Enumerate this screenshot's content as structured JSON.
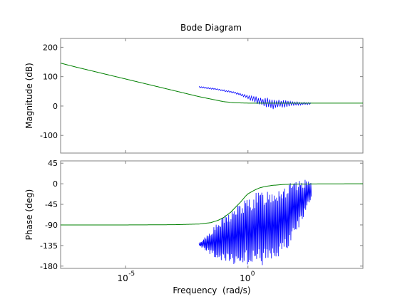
{
  "figure": {
    "title": "Bode Diagram",
    "xlabel": "Frequency  (rad/s)",
    "colors": {
      "background": "#ffffff",
      "axes": "#262626",
      "frame": "#808080",
      "green": "#008000",
      "blue": "#0000ff"
    }
  },
  "chart_data": [
    {
      "type": "line",
      "title": "Bode Diagram",
      "ylabel": "Magnitude (dB)",
      "xscale": "log",
      "xlim": [
        2.2e-08,
        50000.0
      ],
      "ylim": [
        -160,
        230
      ],
      "yticks": [
        200,
        100,
        0,
        -100
      ],
      "grid": false,
      "series": [
        {
          "color": "#008000",
          "x": [
            2.2e-08,
            1e-07,
            1e-06,
            1e-05,
            0.0001,
            0.001,
            0.01,
            0.1,
            0.3,
            1.0,
            10,
            100,
            1000,
            10000,
            50000
          ],
          "y": [
            146,
            132,
            112,
            92,
            72,
            52,
            32,
            15,
            11,
            10,
            10,
            10,
            10,
            10,
            10
          ]
        },
        {
          "color": "#0000ff",
          "x_range": [
            0.01,
            400
          ],
          "envelope_upper_x": [
            0.01,
            0.05,
            0.3,
            1,
            3,
            10,
            30,
            100,
            400
          ],
          "envelope_upper_y": [
            68,
            60,
            48,
            38,
            32,
            26,
            20,
            15,
            12
          ],
          "envelope_lower_x": [
            0.01,
            0.05,
            0.3,
            1,
            3,
            10,
            30,
            100,
            400
          ],
          "envelope_lower_y": [
            62,
            55,
            42,
            25,
            0,
            -12,
            -5,
            2,
            6
          ]
        }
      ]
    },
    {
      "type": "line",
      "ylabel": "Phase (deg)",
      "xscale": "log",
      "xlim": [
        2.2e-08,
        50000.0
      ],
      "ylim": [
        -185,
        50
      ],
      "yticks": [
        45,
        0,
        -45,
        -90,
        -135,
        -180
      ],
      "xticks": [
        1e-05,
        1
      ],
      "xtick_labels": [
        {
          "base": "10",
          "exp": "-5"
        },
        {
          "base": "10",
          "exp": "0"
        }
      ],
      "grid": false,
      "series": [
        {
          "color": "#008000",
          "x": [
            2.2e-08,
            1e-05,
            0.001,
            0.01,
            0.03,
            0.06,
            0.1,
            0.2,
            0.3,
            0.5,
            0.8,
            1,
            2,
            3,
            5,
            10,
            30,
            100,
            1000,
            50000
          ],
          "y": [
            -90,
            -90,
            -89.5,
            -88,
            -85,
            -80,
            -74,
            -62,
            -52,
            -40,
            -27,
            -22,
            -13,
            -9,
            -6,
            -3.5,
            -1.5,
            -0.7,
            -0.2,
            0
          ]
        },
        {
          "color": "#0000ff",
          "x_range": [
            0.01,
            400
          ],
          "envelope_upper_x": [
            0.01,
            0.1,
            0.5,
            1,
            3,
            10,
            30,
            100,
            400
          ],
          "envelope_upper_y": [
            -130,
            -70,
            -40,
            -30,
            -15,
            -5,
            0,
            5,
            12
          ],
          "envelope_lower_x": [
            0.01,
            0.1,
            0.3,
            1,
            3,
            10,
            30,
            100,
            400
          ],
          "envelope_lower_y": [
            -135,
            -178,
            -178,
            -178,
            -180,
            -178,
            -160,
            -110,
            -30
          ]
        }
      ]
    }
  ]
}
